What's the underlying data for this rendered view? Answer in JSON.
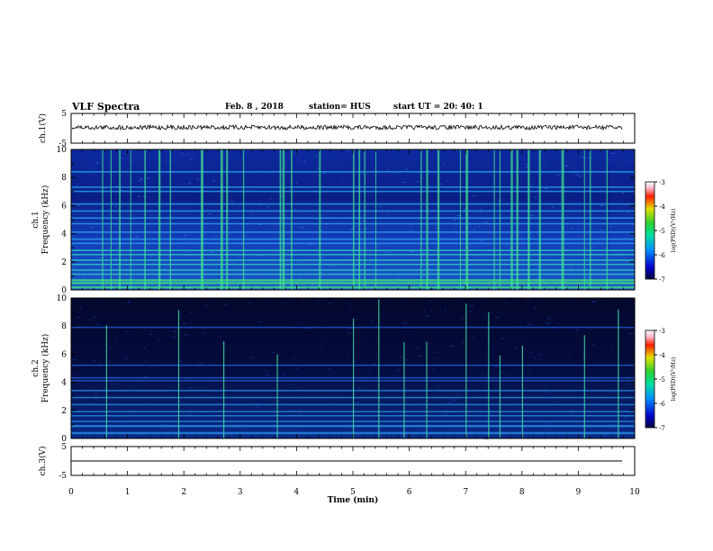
{
  "header": {
    "title": "VLF Spectra",
    "date": "Feb. 8 , 2018",
    "station": "station= HUS",
    "start": "start UT =   20: 40: 1"
  },
  "chart_data": [
    {
      "type": "line",
      "name": "ch1-waveform",
      "ylabel": "ch.1(V)",
      "ylim": [
        -5,
        5
      ],
      "y_ticks": [
        "5",
        "-5"
      ],
      "xlim": [
        0,
        10
      ],
      "level": 0
    },
    {
      "type": "heatmap",
      "name": "ch1-spectrogram",
      "ylabel": "ch.1\nFrequency (kHz)",
      "ylabel_line1": "ch.1",
      "ylabel_line2": "Frequency (kHz)",
      "ylim": [
        0,
        10
      ],
      "y_ticks": [
        "0",
        "2",
        "4",
        "6",
        "8",
        "10"
      ],
      "xlim": [
        0,
        10
      ],
      "colorbar": {
        "label": "log(PSD)(V²/Hz)",
        "range": [
          -7,
          -3
        ],
        "ticks": [
          "-3",
          "-4",
          "-5",
          "-6",
          "-7"
        ]
      },
      "horizontal_bands_khz": [
        0.2,
        0.5,
        0.7,
        1.1,
        1.4,
        1.8,
        2.1,
        2.5,
        2.8,
        3.3,
        3.6,
        4.1,
        4.7,
        5.1,
        5.6,
        6.1,
        7.0,
        7.3,
        8.4
      ],
      "vertical_bursts_min": [
        0.55,
        0.7,
        0.85,
        1.05,
        1.3,
        1.55,
        1.75,
        2.3,
        2.65,
        2.75,
        3.05,
        3.7,
        3.75,
        3.9,
        4.4,
        5.0,
        5.1,
        5.2,
        5.4,
        6.2,
        6.3,
        6.5,
        6.9,
        7.0,
        7.5,
        7.6,
        7.8,
        7.9,
        8.1,
        8.3,
        8.7,
        9.1,
        9.2,
        9.5
      ]
    },
    {
      "type": "heatmap",
      "name": "ch2-spectrogram",
      "ylabel": "ch.2\nFrequency (kHz)",
      "ylabel_line1": "ch.2",
      "ylabel_line2": "Frequency (kHz)",
      "ylim": [
        0,
        10
      ],
      "y_ticks": [
        "0",
        "2",
        "4",
        "6",
        "8",
        "10"
      ],
      "xlim": [
        0,
        10
      ],
      "colorbar": {
        "label": "log(PSD)(V²/Hz)",
        "range": [
          -7,
          -3
        ],
        "ticks": [
          "-3",
          "-4",
          "-5",
          "-6",
          "-7"
        ]
      },
      "horizontal_bands_khz": [
        0.4,
        0.9,
        1.2,
        1.6,
        1.9,
        2.4,
        2.9,
        3.4,
        4.1,
        4.3,
        5.2,
        7.9
      ],
      "vertical_bursts_min": [
        0.62,
        1.9,
        2.7,
        3.65,
        5.0,
        5.45,
        5.9,
        6.3,
        7.0,
        7.4,
        7.6,
        8.0,
        9.1,
        9.7
      ]
    },
    {
      "type": "line",
      "name": "ch3-waveform",
      "ylabel": "ch.3(V)",
      "ylim": [
        -5,
        5
      ],
      "y_ticks": [
        "5",
        "-5"
      ],
      "xlim": [
        0,
        10
      ],
      "level": 0,
      "xlabel": "Time (min)",
      "x_ticks": [
        "0",
        "1",
        "2",
        "3",
        "4",
        "5",
        "6",
        "7",
        "8",
        "9",
        "10"
      ]
    }
  ]
}
